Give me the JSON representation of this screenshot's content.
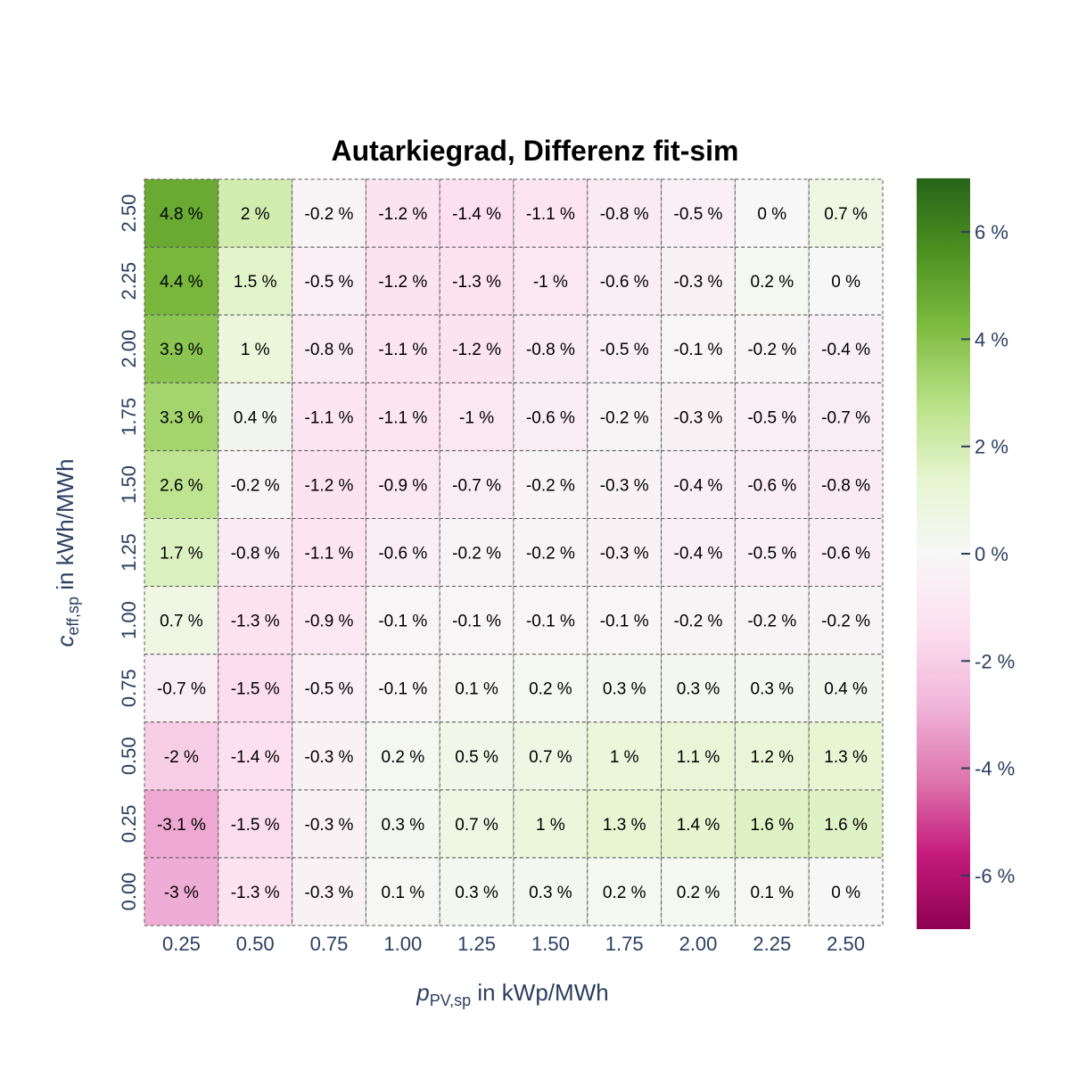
{
  "chart_data": {
    "type": "heatmap",
    "title": "Autarkiegrad, Differenz fit-sim",
    "xlabel": {
      "var": "p",
      "sub": "PV,sp",
      "rest": " in kWp/MWh"
    },
    "ylabel": {
      "var": "c",
      "sub": "eff,sp",
      "rest": " in kWh/MWh"
    },
    "x": [
      "0.25",
      "0.50",
      "0.75",
      "1.00",
      "1.25",
      "1.50",
      "1.75",
      "2.00",
      "2.25",
      "2.50"
    ],
    "y": [
      "0.00",
      "0.25",
      "0.50",
      "0.75",
      "1.00",
      "1.25",
      "1.50",
      "1.75",
      "2.00",
      "2.25",
      "2.50"
    ],
    "z": [
      [
        -3,
        -1.3,
        -0.3,
        0.1,
        0.3,
        0.3,
        0.2,
        0.2,
        0.1,
        0
      ],
      [
        -3.1,
        -1.5,
        -0.3,
        0.3,
        0.7,
        1,
        1.3,
        1.4,
        1.6,
        1.6
      ],
      [
        -2,
        -1.4,
        -0.3,
        0.2,
        0.5,
        0.7,
        1,
        1.1,
        1.2,
        1.3
      ],
      [
        -0.7,
        -1.5,
        -0.5,
        -0.1,
        0.1,
        0.2,
        0.3,
        0.3,
        0.3,
        0.4
      ],
      [
        0.7,
        -1.3,
        -0.9,
        -0.1,
        -0.1,
        -0.1,
        -0.1,
        -0.2,
        -0.2,
        -0.2
      ],
      [
        1.7,
        -0.8,
        -1.1,
        -0.6,
        -0.2,
        -0.2,
        -0.3,
        -0.4,
        -0.5,
        -0.6
      ],
      [
        2.6,
        -0.2,
        -1.2,
        -0.9,
        -0.7,
        -0.2,
        -0.3,
        -0.4,
        -0.6,
        -0.8
      ],
      [
        3.3,
        0.4,
        -1.1,
        -1.1,
        -1,
        -0.6,
        -0.2,
        -0.3,
        -0.5,
        -0.7
      ],
      [
        3.9,
        1,
        -0.8,
        -1.1,
        -1.2,
        -0.8,
        -0.5,
        -0.1,
        -0.2,
        -0.4
      ],
      [
        4.4,
        1.5,
        -0.5,
        -1.2,
        -1.3,
        -1,
        -0.6,
        -0.3,
        0.2,
        0
      ],
      [
        4.8,
        2,
        -0.2,
        -1.2,
        -1.4,
        -1.1,
        -0.8,
        -0.5,
        0,
        0.7
      ]
    ],
    "value_suffix": " %",
    "zmin": -7,
    "zmax": 7,
    "colorscale": "PiYG",
    "colorbar": {
      "ticks": [
        -6,
        -4,
        -2,
        0,
        2,
        4,
        6
      ],
      "tick_labels": [
        "-6 %",
        "-4 %",
        "-2 %",
        "0 %",
        "2 %",
        "4 %",
        "6 %"
      ]
    },
    "grid": "dashed cell borders"
  }
}
